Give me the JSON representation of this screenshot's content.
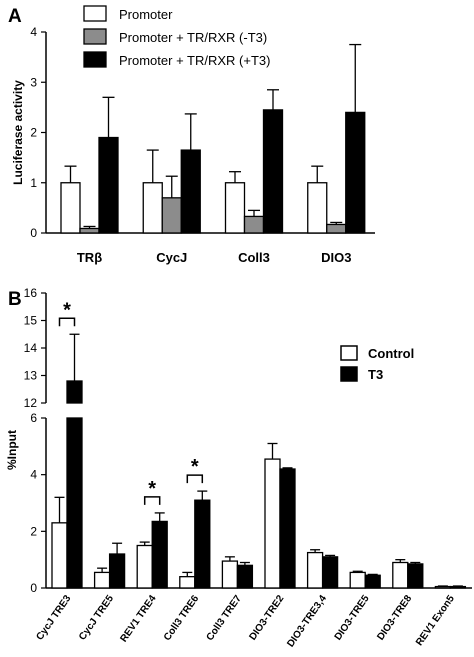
{
  "chart_data": [
    {
      "panel": "A",
      "type": "bar",
      "ylabel": "Luciferase activity",
      "ylim": [
        0,
        4
      ],
      "yticks": [
        "0",
        "1",
        "2",
        "3",
        "4"
      ],
      "categories": [
        "TRβ",
        "CycJ",
        "Coll3",
        "DIO3"
      ],
      "series": [
        {
          "name": "Promoter",
          "color": "#ffffff",
          "values": [
            1.0,
            1.0,
            1.0,
            1.0
          ],
          "errors": [
            0.33,
            0.65,
            0.22,
            0.33
          ]
        },
        {
          "name": "Promoter + TR/RXR  (-T3)",
          "color": "#8c8c8c",
          "values": [
            0.09,
            0.7,
            0.33,
            0.17
          ],
          "errors": [
            0.04,
            0.43,
            0.12,
            0.04
          ]
        },
        {
          "name": "Promoter + TR/RXR  (+T3)",
          "color": "#000000",
          "values": [
            1.9,
            1.65,
            2.45,
            2.4
          ],
          "errors": [
            0.8,
            0.72,
            0.4,
            1.35
          ]
        }
      ],
      "legend": "top"
    },
    {
      "panel": "B",
      "type": "bar",
      "ylabel": "%Input",
      "ylim": [
        0,
        16
      ],
      "axis_break": [
        6,
        12
      ],
      "yticks": [
        "0",
        "2",
        "4",
        "6",
        "12",
        "13",
        "14",
        "15",
        "16"
      ],
      "categories": [
        "CycJ TRE3",
        "CycJ TRE5",
        "REV1 TRE4",
        "Coll3 TRE6",
        "Coll3 TRE7",
        "DIO3-TRE2",
        "DIO3-TRE3,4",
        "DIO3-TRE5",
        "DIO3-TRE8",
        "REV1 Exon5"
      ],
      "series": [
        {
          "name": "Control",
          "color": "#ffffff",
          "values": [
            2.3,
            0.55,
            1.5,
            0.4,
            0.95,
            4.55,
            1.25,
            0.55,
            0.9,
            0.05
          ],
          "errors": [
            0.9,
            0.15,
            0.12,
            0.15,
            0.15,
            0.55,
            0.1,
            0.04,
            0.1,
            0.02
          ]
        },
        {
          "name": "T3",
          "color": "#000000",
          "values": [
            12.8,
            1.2,
            2.35,
            3.1,
            0.8,
            4.2,
            1.1,
            0.45,
            0.85,
            0.05
          ],
          "errors": [
            1.7,
            0.38,
            0.3,
            0.32,
            0.1,
            0.04,
            0.05,
            0.03,
            0.05,
            0.02
          ]
        }
      ],
      "significance": [
        {
          "category": "CycJ TRE3",
          "label": "*"
        },
        {
          "category": "REV1 TRE4",
          "label": "*"
        },
        {
          "category": "Coll3 TRE6",
          "label": "*"
        }
      ],
      "legend": "right"
    }
  ]
}
